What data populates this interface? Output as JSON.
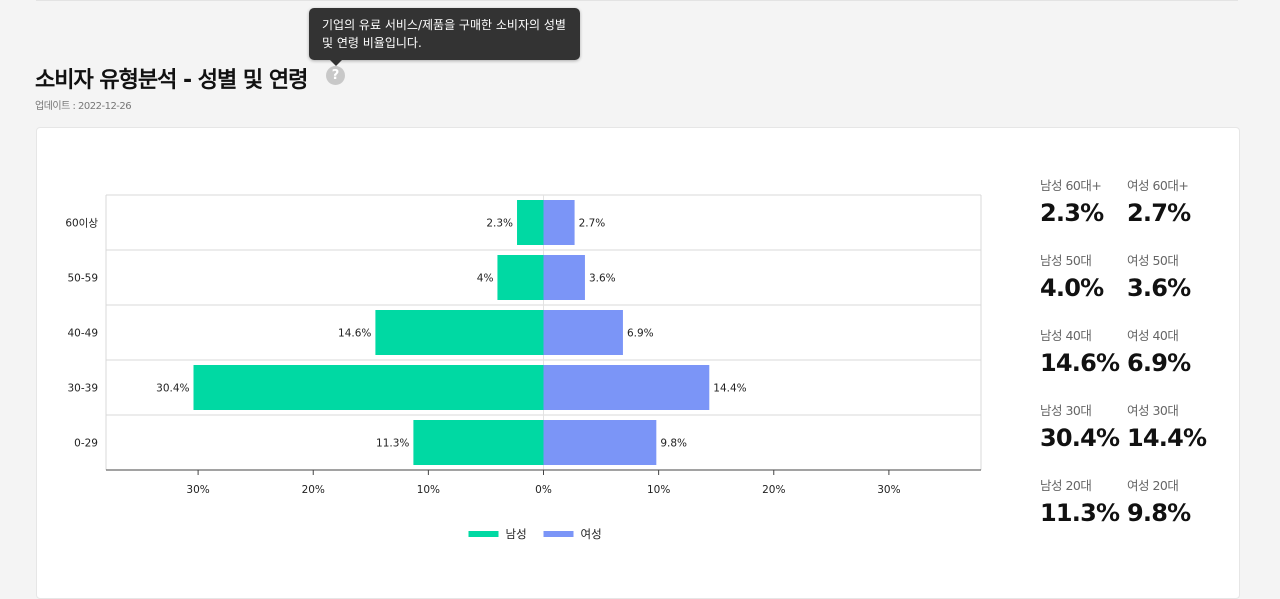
{
  "header": {
    "title": "소비자 유형분석 - 성별 및 연령",
    "help_icon_glyph": "?",
    "updated": "업데이트 : 2022-12-26",
    "tooltip": "기업의 유료 서비스/제품을 구매한 소비자의 성별 및 연령 비율입니다."
  },
  "colors": {
    "male": "#00d9a3",
    "female": "#7b95f7"
  },
  "chart_data": {
    "type": "bar",
    "orientation": "horizontal",
    "layout": "diverging-population-pyramid",
    "categories": [
      "60이상",
      "50-59",
      "40-49",
      "30-39",
      "0-29"
    ],
    "series": [
      {
        "name": "남성",
        "side": "left",
        "values": [
          2.3,
          4,
          14.6,
          30.4,
          11.3
        ],
        "labels": [
          "2.3%",
          "4%",
          "14.6%",
          "30.4%",
          "11.3%"
        ]
      },
      {
        "name": "여성",
        "side": "right",
        "values": [
          2.7,
          3.6,
          6.9,
          14.4,
          9.8
        ],
        "labels": [
          "2.7%",
          "3.6%",
          "6.9%",
          "14.4%",
          "9.8%"
        ]
      }
    ],
    "x_ticks": [
      -30,
      -20,
      -10,
      0,
      10,
      20,
      30
    ],
    "x_tick_labels": [
      "30%",
      "20%",
      "10%",
      "0%",
      "10%",
      "20%",
      "30%"
    ],
    "xlim": [
      -38,
      38
    ],
    "legend_position": "bottom-center"
  },
  "stats": [
    [
      {
        "label": "남성 60대+",
        "value": "2.3%"
      },
      {
        "label": "여성 60대+",
        "value": "2.7%"
      }
    ],
    [
      {
        "label": "남성 50대",
        "value": "4.0%"
      },
      {
        "label": "여성 50대",
        "value": "3.6%"
      }
    ],
    [
      {
        "label": "남성 40대",
        "value": "14.6%"
      },
      {
        "label": "여성 40대",
        "value": "6.9%"
      }
    ],
    [
      {
        "label": "남성 30대",
        "value": "30.4%"
      },
      {
        "label": "여성 30대",
        "value": "14.4%"
      }
    ],
    [
      {
        "label": "남성 20대",
        "value": "11.3%"
      },
      {
        "label": "여성 20대",
        "value": "9.8%"
      }
    ]
  ]
}
